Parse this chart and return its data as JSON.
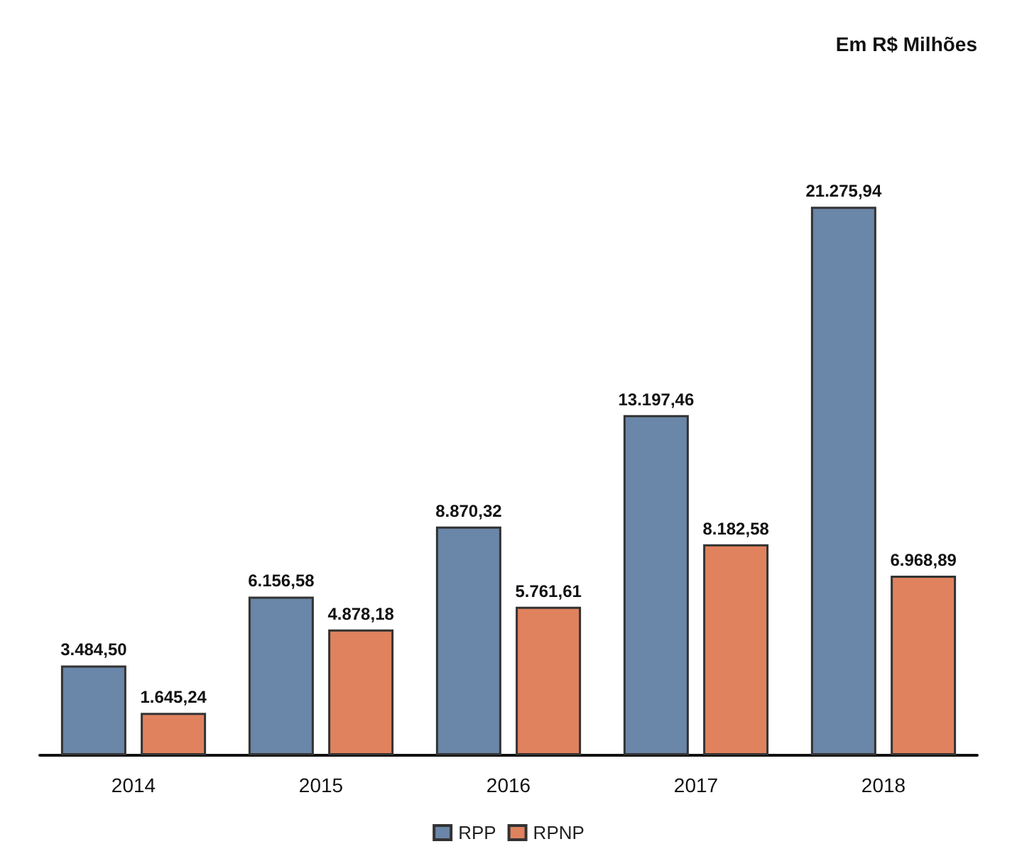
{
  "chart_data": {
    "type": "bar",
    "annotations": [
      "Em R$ Milhões"
    ],
    "categories": [
      "2014",
      "2015",
      "2016",
      "2017",
      "2018"
    ],
    "series": [
      {
        "name": "RPP",
        "color": "#6a86a8",
        "values": [
          3484.5,
          6156.58,
          8870.32,
          13197.46,
          21275.94
        ],
        "value_labels": [
          "3.484,50",
          "6.156,58",
          "8.870,32",
          "13.197,46",
          "21.275,94"
        ]
      },
      {
        "name": "RPNP",
        "color": "#e0825e",
        "values": [
          1645.24,
          4878.18,
          5761.61,
          8182.58,
          6968.89
        ],
        "value_labels": [
          "1.645,24",
          "4.878,18",
          "5.761,61",
          "8.182,58",
          "6.968,89"
        ]
      }
    ],
    "legend": "bottom"
  }
}
